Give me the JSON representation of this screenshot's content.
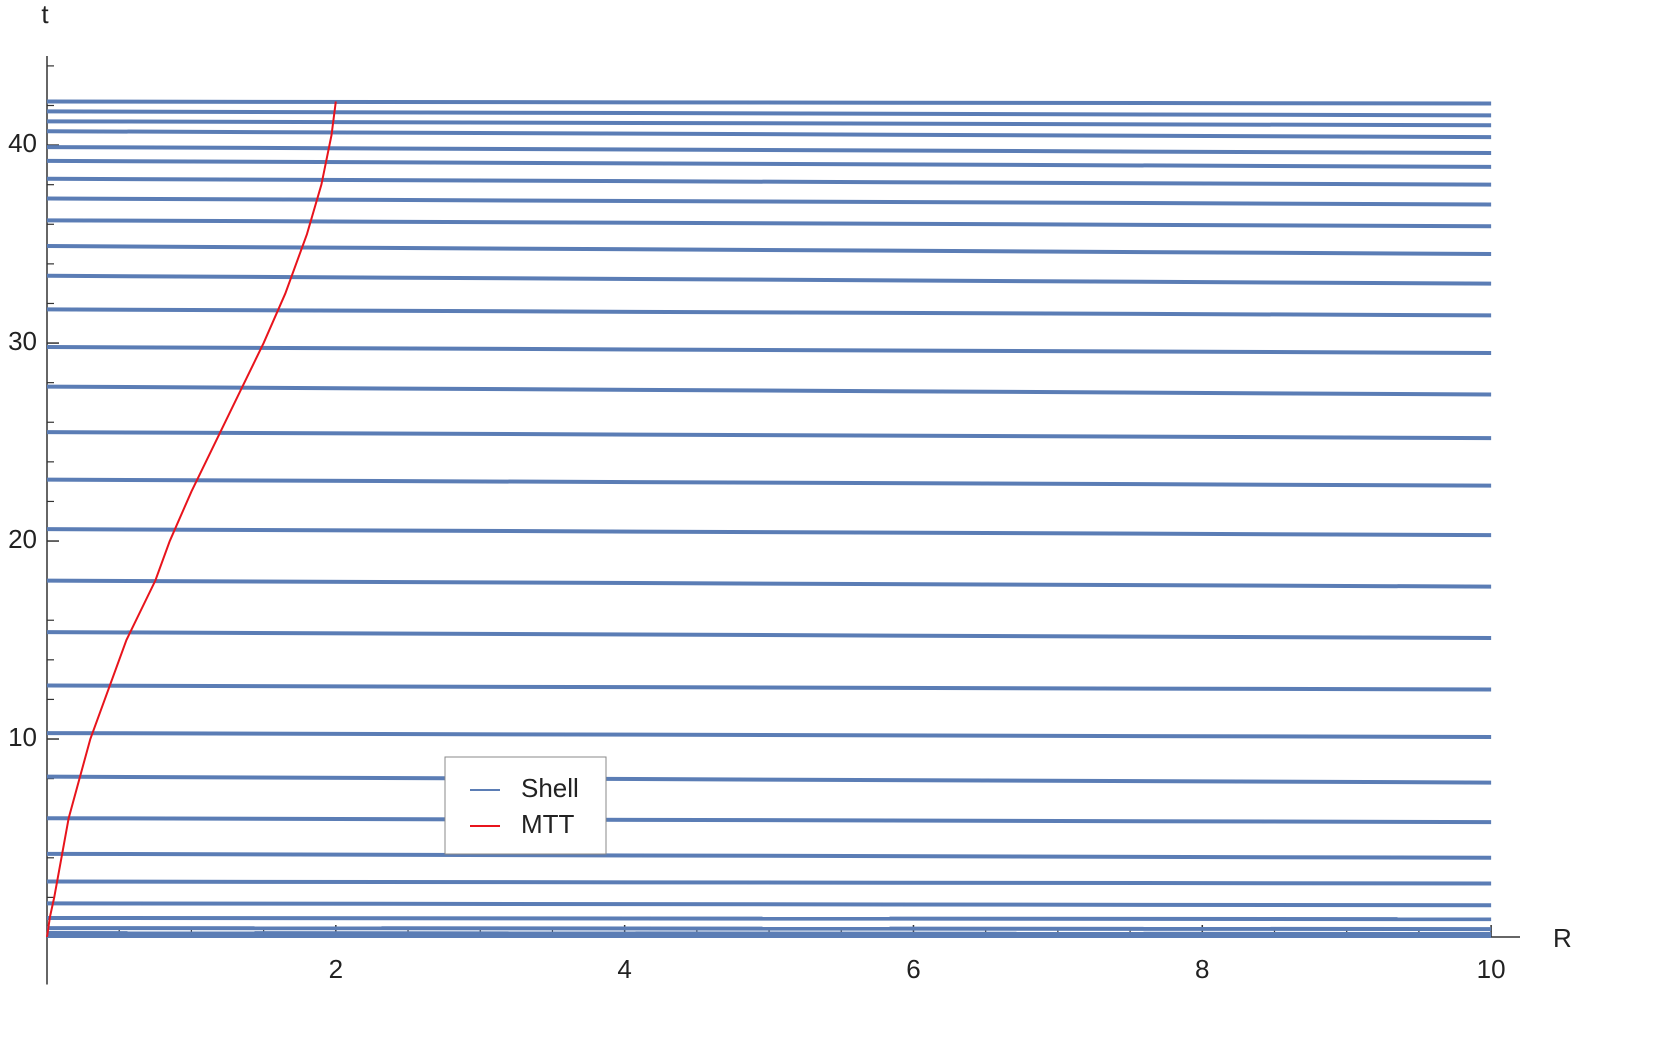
{
  "chart_data": {
    "type": "line",
    "x_label": "R",
    "y_label": "t",
    "xlim": [
      0,
      10.2
    ],
    "ylim": [
      -2.4,
      44.5
    ],
    "xticks": [
      2,
      4,
      6,
      8,
      10
    ],
    "yticks": [
      10,
      20,
      30,
      40
    ],
    "xminorticks": [
      0.5,
      1,
      1.5,
      2.5,
      3,
      3.5,
      4.5,
      5,
      5.5,
      6.5,
      7,
      7.5,
      8.5,
      9,
      9.5
    ],
    "yminorticks": [
      2,
      4,
      6,
      8,
      12,
      14,
      16,
      18,
      22,
      24,
      26,
      28,
      32,
      34,
      36,
      38,
      42,
      44
    ],
    "series": [
      {
        "name": "Shell",
        "color": "#5b7db5",
        "x": [
          0,
          10
        ],
        "lines": [
          [
            42.2,
            42.1
          ],
          [
            41.7,
            41.5
          ],
          [
            41.2,
            41.0
          ],
          [
            40.7,
            40.4
          ],
          [
            39.9,
            39.6
          ],
          [
            39.2,
            38.9
          ],
          [
            38.3,
            38.0
          ],
          [
            37.3,
            37.0
          ],
          [
            36.2,
            35.9
          ],
          [
            34.9,
            34.5
          ],
          [
            33.4,
            33.0
          ],
          [
            31.7,
            31.4
          ],
          [
            29.8,
            29.5
          ],
          [
            27.8,
            27.4
          ],
          [
            25.5,
            25.2
          ],
          [
            23.1,
            22.8
          ],
          [
            20.6,
            20.3
          ],
          [
            18.0,
            17.7
          ],
          [
            15.4,
            15.1
          ],
          [
            12.7,
            12.5
          ],
          [
            10.3,
            10.1
          ],
          [
            8.1,
            7.8
          ],
          [
            6.0,
            5.8
          ],
          [
            4.2,
            4.0
          ],
          [
            2.8,
            2.7
          ],
          [
            1.7,
            1.6
          ],
          [
            0.96,
            0.9
          ],
          [
            0.45,
            0.4
          ],
          [
            0.2,
            0.15
          ],
          [
            0.05,
            0.05
          ]
        ]
      },
      {
        "name": "MTT",
        "color": "#e8141c",
        "x": [
          0,
          0.02,
          0.05,
          0.15,
          0.3,
          0.55,
          0.75,
          0.85,
          1.0,
          1.3,
          1.5,
          1.65,
          1.8,
          1.9,
          1.97,
          2.0
        ],
        "values": [
          0,
          1,
          2,
          6,
          10,
          15,
          18,
          20,
          22.5,
          27,
          30,
          32.5,
          35.5,
          38,
          40.5,
          42.2
        ]
      }
    ]
  }
}
